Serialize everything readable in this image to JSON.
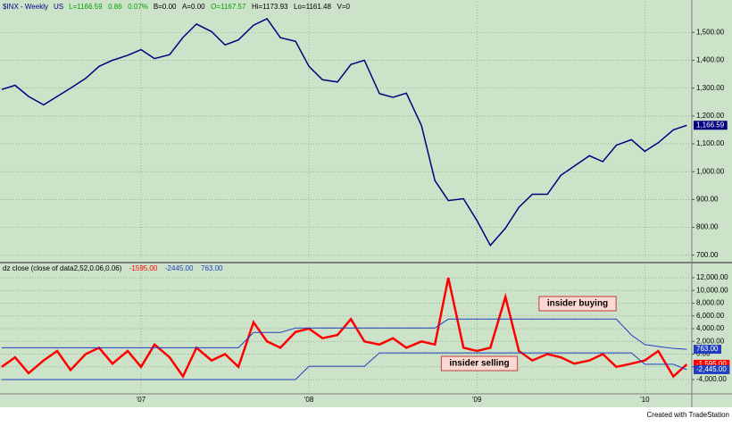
{
  "chart_data": [
    {
      "type": "line",
      "header": [
        {
          "text": "$INX - Weekly",
          "color": "#000080"
        },
        {
          "text": "US",
          "color": "#000080"
        },
        {
          "text": "L=1166.59",
          "color": "#00a000"
        },
        {
          "text": "0.86",
          "color": "#00a000"
        },
        {
          "text": "0.07%",
          "color": "#00a000"
        },
        {
          "text": "B=0.00",
          "color": "#000000"
        },
        {
          "text": "A=0.00",
          "color": "#000000"
        },
        {
          "text": "O=1167.57",
          "color": "#00a000"
        },
        {
          "text": "Hi=1173.93",
          "color": "#000000"
        },
        {
          "text": "Lo=1161.48",
          "color": "#000000"
        },
        {
          "text": "V=0",
          "color": "#000000"
        }
      ],
      "x": [
        2006.17,
        2006.25,
        2006.33,
        2006.42,
        2006.5,
        2006.58,
        2006.67,
        2006.75,
        2006.83,
        2006.92,
        2007.0,
        2007.08,
        2007.17,
        2007.25,
        2007.33,
        2007.42,
        2007.5,
        2007.58,
        2007.67,
        2007.75,
        2007.83,
        2007.92,
        2008.0,
        2008.08,
        2008.17,
        2008.25,
        2008.33,
        2008.42,
        2008.5,
        2008.58,
        2008.67,
        2008.75,
        2008.83,
        2008.92,
        2009.0,
        2009.08,
        2009.17,
        2009.25,
        2009.33,
        2009.42,
        2009.5,
        2009.58,
        2009.67,
        2009.75,
        2009.83,
        2009.92,
        2010.0,
        2010.08,
        2010.17,
        2010.25
      ],
      "series": [
        {
          "color": "#000080",
          "values": [
            1295,
            1310,
            1270,
            1240,
            1270,
            1300,
            1335,
            1378,
            1400,
            1418,
            1438,
            1406,
            1420,
            1482,
            1530,
            1503,
            1455,
            1473,
            1526,
            1549,
            1481,
            1468,
            1378,
            1330,
            1322,
            1385,
            1400,
            1280,
            1267,
            1282,
            1166,
            968,
            896,
            903,
            825,
            735,
            797,
            872,
            919,
            919,
            987,
            1020,
            1057,
            1036,
            1095,
            1115,
            1073,
            1104,
            1150,
            1166.59
          ],
          "last_label": "1,166.59"
        }
      ],
      "ylim": [
        680,
        1610
      ],
      "yticks": [
        {
          "value": 700,
          "label": "700.00"
        },
        {
          "value": 800,
          "label": "800.00"
        },
        {
          "value": 900,
          "label": "900.00"
        },
        {
          "value": 1000,
          "label": "1,000.00"
        },
        {
          "value": 1100,
          "label": "1,100.00"
        },
        {
          "value": 1200,
          "label": "1,200.00"
        },
        {
          "value": 1300,
          "label": "1,300.00"
        },
        {
          "value": 1400,
          "label": "1,400.00"
        },
        {
          "value": 1500,
          "label": "1,500.00"
        }
      ],
      "grid": true
    },
    {
      "type": "line",
      "title": "dz close (close of data2,52,0.06,0.06)",
      "x": [
        2006.17,
        2006.25,
        2006.33,
        2006.42,
        2006.5,
        2006.58,
        2006.67,
        2006.75,
        2006.83,
        2006.92,
        2007.0,
        2007.08,
        2007.17,
        2007.25,
        2007.33,
        2007.42,
        2007.5,
        2007.58,
        2007.67,
        2007.75,
        2007.83,
        2007.92,
        2008.0,
        2008.08,
        2008.17,
        2008.25,
        2008.33,
        2008.42,
        2008.5,
        2008.58,
        2008.67,
        2008.75,
        2008.83,
        2008.92,
        2009.0,
        2009.08,
        2009.17,
        2009.25,
        2009.33,
        2009.42,
        2009.5,
        2009.58,
        2009.67,
        2009.75,
        2009.83,
        2009.92,
        2010.0,
        2010.08,
        2010.17,
        2010.25
      ],
      "series": [
        {
          "color": "#ff0000",
          "width": 2.5,
          "legend_label": "-1595.00",
          "last_label": "-1,595.00",
          "values": [
            -2000,
            -500,
            -3000,
            -1000,
            500,
            -2500,
            0,
            1000,
            -1500,
            500,
            -2000,
            1500,
            -500,
            -3500,
            1000,
            -1000,
            0,
            -2000,
            5000,
            2000,
            1000,
            3500,
            4000,
            2500,
            3000,
            5500,
            2000,
            1500,
            2500,
            1000,
            2000,
            1500,
            12000,
            1000,
            500,
            1000,
            9000,
            500,
            -1000,
            0,
            -500,
            -1500,
            -1000,
            0,
            -2000,
            -1500,
            -1000,
            500,
            -3500,
            -1595
          ]
        },
        {
          "color": "#2040c0",
          "width": 1,
          "legend_label": "-2445.00",
          "last_label": "-2,445.00",
          "values": [
            -4000,
            -4000,
            -4000,
            -4000,
            -4000,
            -4000,
            -4000,
            -4000,
            -4000,
            -4000,
            -4000,
            -4000,
            -4000,
            -4000,
            -4000,
            -4000,
            -4000,
            -4000,
            -4000,
            -4000,
            -4000,
            -4000,
            -1900,
            -1900,
            -1900,
            -1900,
            -1900,
            200,
            200,
            200,
            200,
            200,
            200,
            200,
            200,
            200,
            200,
            200,
            200,
            200,
            200,
            200,
            200,
            200,
            200,
            200,
            -1600,
            -1600,
            -1600,
            -2445
          ]
        },
        {
          "color": "#2040c0",
          "width": 1,
          "legend_label": "763.00",
          "last_label": "763.00",
          "values": [
            1000,
            1000,
            1000,
            1000,
            1000,
            1000,
            1000,
            1000,
            1000,
            1000,
            1000,
            1000,
            1000,
            1000,
            1000,
            1000,
            1000,
            1000,
            3400,
            3400,
            3400,
            4100,
            4100,
            4100,
            4100,
            4100,
            4100,
            4100,
            4100,
            4100,
            4100,
            4100,
            5500,
            5500,
            5500,
            5500,
            5500,
            5500,
            5500,
            5500,
            5500,
            5500,
            5500,
            5500,
            5500,
            3000,
            1500,
            1200,
            900,
            763
          ]
        }
      ],
      "annotations": [
        "insider buying",
        "insider selling"
      ],
      "xlim": [
        2006.16,
        2010.28
      ],
      "xticks": [
        {
          "value": 2007,
          "label": "'07"
        },
        {
          "value": 2008,
          "label": "'08"
        },
        {
          "value": 2009,
          "label": "'09"
        },
        {
          "value": 2010,
          "label": "'10"
        }
      ],
      "ylim": [
        -6100,
        14100
      ],
      "yticks": [
        {
          "value": -4000,
          "label": "-4,000.00"
        },
        {
          "value": -2000,
          "label": "-2,000.00"
        },
        {
          "value": 0,
          "label": "0.00"
        },
        {
          "value": 2000,
          "label": "2,000.00"
        },
        {
          "value": 4000,
          "label": "4,000.00"
        },
        {
          "value": 6000,
          "label": "6,000.00"
        },
        {
          "value": 8000,
          "label": "8,000.00"
        },
        {
          "value": 10000,
          "label": "10,000.00"
        },
        {
          "value": 12000,
          "label": "12,000.00"
        }
      ],
      "grid": true
    }
  ],
  "footer": "Created with TradeStation"
}
